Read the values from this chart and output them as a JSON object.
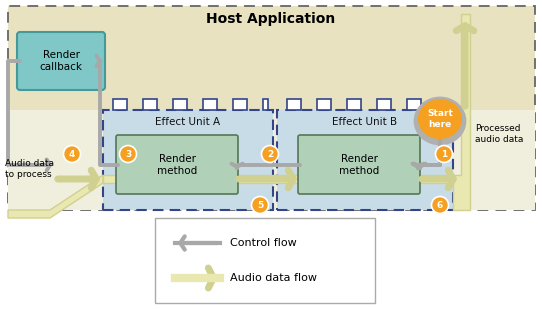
{
  "title": "Host Application",
  "host_bg_top": "#d4c99a",
  "host_bg_bottom": "#f0eedc",
  "effect_unit_bg": "#c8dce8",
  "render_method_bg": "#b0d0b8",
  "render_callback_fill": "#80c8c8",
  "render_callback_stroke": "#449999",
  "orange": "#f5a020",
  "ctrl_color": "#a8a8a8",
  "audio_color": "#e8e8b0",
  "audio_stroke": "#d0d090",
  "eu_border": "#334488",
  "start_gray": "#b0b0b0",
  "numbers": [
    "1",
    "2",
    "3",
    "4",
    "5",
    "6"
  ],
  "labels": {
    "host_app": "Host Application",
    "effect_a": "Effect Unit A",
    "effect_b": "Effect Unit B",
    "render_callback": "Render\ncallback",
    "render_method": "Render\nmethod",
    "start_here": "Start\nhere",
    "audio_in": "Audio data\nto process",
    "audio_out": "Processed\naudio data",
    "control_flow": "Control flow",
    "audio_flow": "Audio data flow"
  }
}
